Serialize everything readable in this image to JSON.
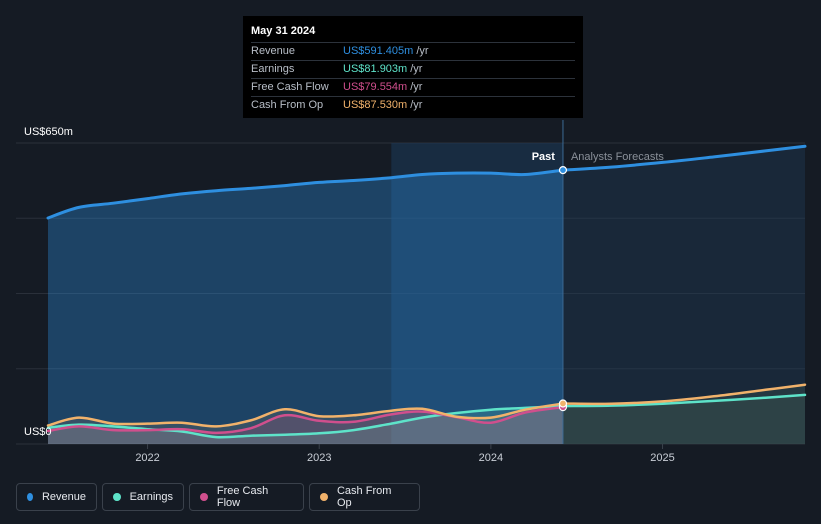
{
  "tooltip": {
    "date": "May 31 2024",
    "rows": [
      {
        "label": "Revenue",
        "value": "US$591.405m",
        "unit": "/yr",
        "color": "#2e8fe0"
      },
      {
        "label": "Earnings",
        "value": "US$81.903m",
        "unit": "/yr",
        "color": "#5ee3c9"
      },
      {
        "label": "Free Cash Flow",
        "value": "US$79.554m",
        "unit": "/yr",
        "color": "#d04f8d"
      },
      {
        "label": "Cash From Op",
        "value": "US$87.530m",
        "unit": "/yr",
        "color": "#f1b26b"
      }
    ]
  },
  "legend": [
    {
      "label": "Revenue",
      "color": "#2e8fe0"
    },
    {
      "label": "Earnings",
      "color": "#5ee3c9"
    },
    {
      "label": "Free Cash Flow",
      "color": "#d04f8d"
    },
    {
      "label": "Cash From Op",
      "color": "#f1b26b"
    }
  ],
  "chart_data": {
    "type": "line",
    "title": "",
    "y_top_label": "US$650m",
    "y_bottom_label": "US$0",
    "ylim": [
      0,
      650
    ],
    "xlim": [
      2021.42,
      2025.83
    ],
    "x_ticks": [
      2022,
      2023,
      2024,
      2025
    ],
    "x_tick_labels": [
      "2022",
      "2023",
      "2024",
      "2025"
    ],
    "divider_x": 2024.42,
    "past_label": "Past",
    "forecast_label": "Analysts Forecasts",
    "highlight_start_x": 2023.42,
    "series": [
      {
        "name": "Revenue",
        "color": "#2e8fe0",
        "points": [
          [
            2021.42,
            488
          ],
          [
            2021.6,
            511
          ],
          [
            2021.8,
            520
          ],
          [
            2022.0,
            530
          ],
          [
            2022.2,
            540
          ],
          [
            2022.4,
            547
          ],
          [
            2022.6,
            552
          ],
          [
            2022.8,
            558
          ],
          [
            2023.0,
            565
          ],
          [
            2023.2,
            569
          ],
          [
            2023.42,
            575
          ],
          [
            2023.6,
            582
          ],
          [
            2023.8,
            585
          ],
          [
            2024.0,
            585
          ],
          [
            2024.2,
            582
          ],
          [
            2024.42,
            591.4
          ]
        ],
        "forecast": [
          [
            2024.42,
            591.4
          ],
          [
            2024.7,
            598
          ],
          [
            2025.0,
            608
          ],
          [
            2025.3,
            620
          ],
          [
            2025.6,
            633
          ],
          [
            2025.83,
            643
          ]
        ]
      },
      {
        "name": "Earnings",
        "color": "#5ee3c9",
        "points": [
          [
            2021.42,
            35
          ],
          [
            2021.6,
            42
          ],
          [
            2021.8,
            38
          ],
          [
            2022.0,
            32
          ],
          [
            2022.2,
            27
          ],
          [
            2022.4,
            15
          ],
          [
            2022.6,
            18
          ],
          [
            2022.8,
            20
          ],
          [
            2023.0,
            23
          ],
          [
            2023.2,
            30
          ],
          [
            2023.42,
            44
          ],
          [
            2023.6,
            57
          ],
          [
            2023.8,
            67
          ],
          [
            2024.0,
            74
          ],
          [
            2024.2,
            78
          ],
          [
            2024.42,
            81.9
          ]
        ],
        "forecast": [
          [
            2024.42,
            81.9
          ],
          [
            2024.7,
            83
          ],
          [
            2025.0,
            87
          ],
          [
            2025.3,
            93
          ],
          [
            2025.6,
            100
          ],
          [
            2025.83,
            106
          ]
        ]
      },
      {
        "name": "Free Cash Flow",
        "color": "#d04f8d",
        "points": [
          [
            2021.42,
            28
          ],
          [
            2021.6,
            38
          ],
          [
            2021.8,
            30
          ],
          [
            2022.0,
            30
          ],
          [
            2022.2,
            32
          ],
          [
            2022.4,
            24
          ],
          [
            2022.6,
            34
          ],
          [
            2022.8,
            62
          ],
          [
            2023.0,
            50
          ],
          [
            2023.2,
            48
          ],
          [
            2023.42,
            64
          ],
          [
            2023.6,
            70
          ],
          [
            2023.8,
            58
          ],
          [
            2024.0,
            46
          ],
          [
            2024.2,
            68
          ],
          [
            2024.42,
            79.6
          ]
        ],
        "forecast": []
      },
      {
        "name": "Cash From Op",
        "color": "#f1b26b",
        "points": [
          [
            2021.42,
            40
          ],
          [
            2021.6,
            57
          ],
          [
            2021.8,
            44
          ],
          [
            2022.0,
            44
          ],
          [
            2022.2,
            46
          ],
          [
            2022.4,
            38
          ],
          [
            2022.6,
            51
          ],
          [
            2022.8,
            75
          ],
          [
            2023.0,
            60
          ],
          [
            2023.2,
            62
          ],
          [
            2023.42,
            72
          ],
          [
            2023.6,
            76
          ],
          [
            2023.8,
            59
          ],
          [
            2024.0,
            57
          ],
          [
            2024.2,
            74
          ],
          [
            2024.42,
            87.5
          ]
        ],
        "forecast": [
          [
            2024.42,
            87.5
          ],
          [
            2024.7,
            87
          ],
          [
            2025.0,
            92
          ],
          [
            2025.3,
            103
          ],
          [
            2025.6,
            117
          ],
          [
            2025.83,
            128
          ]
        ]
      }
    ]
  }
}
